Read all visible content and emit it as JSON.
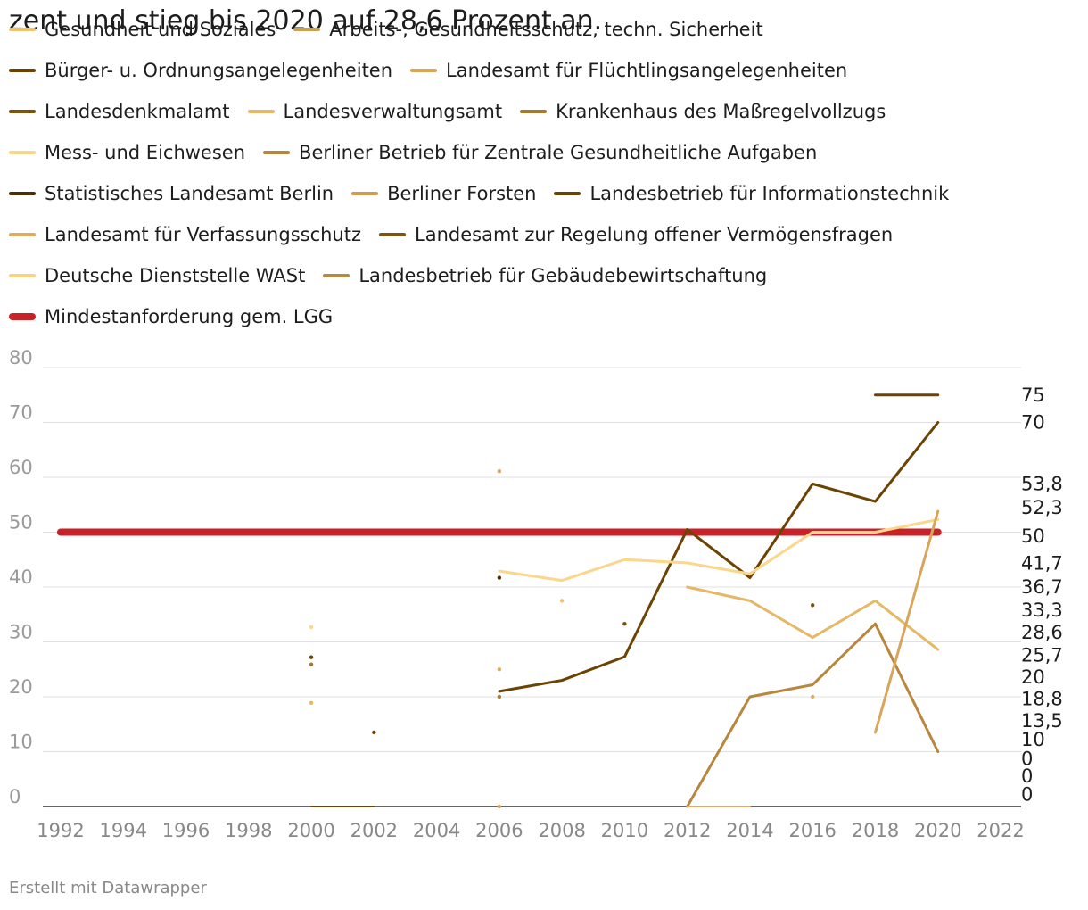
{
  "title": "zent und stieg bis 2020 auf 28,6 Prozent an.",
  "footer": "Erstellt mit Datawrapper",
  "legend": [
    [
      {
        "label": "Gesundheit und Soziales",
        "color": "#f2c26b"
      },
      {
        "label": "Arbeits-, Gesundheitsschutz, techn. Sicherheit",
        "color": "#c8a050"
      }
    ],
    [
      {
        "label": "Bürger- u. Ordnungsangelegenheiten",
        "color": "#6b4403"
      },
      {
        "label": "Landesamt für Flüchtlingsangelegenheiten",
        "color": "#d9a55a"
      }
    ],
    [
      {
        "label": "Landesdenkmalamt",
        "color": "#7a5208"
      },
      {
        "label": "Landesverwaltungsamt",
        "color": "#e6b866"
      },
      {
        "label": "Krankenhaus des Maßregelvollzugs",
        "color": "#a87a2e"
      }
    ],
    [
      {
        "label": "Mess- und Eichwesen",
        "color": "#fcd68a"
      },
      {
        "label": "Berliner Betrieb für Zentrale Gesundheitliche Aufgaben",
        "color": "#b8863d"
      }
    ],
    [
      {
        "label": "Statistisches Landesamt Berlin",
        "color": "#4a2f05"
      },
      {
        "label": "Berliner Forsten",
        "color": "#d19a4f"
      },
      {
        "label": "Landesbetrieb für Informationstechnik",
        "color": "#6b4403"
      }
    ],
    [
      {
        "label": "Landesamt für Verfassungsschutz",
        "color": "#deac5c"
      },
      {
        "label": "Landesamt zur Regelung offener Vermögensfragen",
        "color": "#7d5410"
      }
    ],
    [
      {
        "label": "Deutsche Dienststelle WASt",
        "color": "#f8d382"
      },
      {
        "label": "Landesbetrieb für Gebäudebewirtschaftung",
        "color": "#b58a44"
      }
    ],
    [
      {
        "label": "Mindestanforderung gem. LGG",
        "color": "#c92127",
        "thick": true
      }
    ]
  ],
  "chart_data": {
    "type": "line",
    "xlim": [
      1992,
      2022
    ],
    "ylim": [
      0,
      80
    ],
    "x_ticks": [
      "1992",
      "1994",
      "1996",
      "1998",
      "2000",
      "2002",
      "2004",
      "2006",
      "2008",
      "2010",
      "2012",
      "2014",
      "2016",
      "2018",
      "2020",
      "2022"
    ],
    "y_ticks": [
      "0",
      "10",
      "20",
      "30",
      "40",
      "50",
      "60",
      "70",
      "80"
    ],
    "series": [
      {
        "name": "Mindestanforderung gem. LGG",
        "color": "#c92127",
        "width": 8,
        "points": [
          [
            1992,
            50
          ],
          [
            2020,
            50
          ]
        ]
      },
      {
        "name": "Bürger- u. Ordnungsangelegenheiten",
        "color": "#6b4403",
        "width": 3,
        "points": [
          [
            2006,
            21
          ],
          [
            2008,
            23
          ],
          [
            2010,
            27.3
          ],
          [
            2012,
            50.5
          ],
          [
            2014,
            41.7
          ],
          [
            2016,
            58.8
          ],
          [
            2018,
            55.6
          ],
          [
            2020,
            70
          ]
        ]
      },
      {
        "name": "Mess- und Eichwesen",
        "color": "#fcd68a",
        "width": 3,
        "points": [
          [
            2006,
            42.9
          ],
          [
            2008,
            41.2
          ],
          [
            2010,
            45
          ],
          [
            2012,
            44.4
          ],
          [
            2014,
            42.4
          ],
          [
            2016,
            50
          ],
          [
            2018,
            50
          ],
          [
            2020,
            52.3
          ]
        ]
      },
      {
        "name": "Gesundheit und Soziales",
        "color": "#e6b866",
        "width": 3,
        "points": [
          [
            2012,
            40
          ],
          [
            2014,
            37.5
          ],
          [
            2016,
            30.8
          ],
          [
            2018,
            37.5
          ],
          [
            2020,
            28.6
          ]
        ]
      },
      {
        "name": "Krankenhaus des Maßregelvollzugs",
        "color": "#b8863d",
        "width": 3,
        "points": [
          [
            2012,
            0
          ],
          [
            2014,
            20
          ],
          [
            2016,
            22.2
          ],
          [
            2018,
            33.3
          ],
          [
            2020,
            10
          ]
        ]
      },
      {
        "name": "Landesamt für Flüchtlingsangelegenheiten",
        "color": "#d9a55a",
        "width": 3,
        "points": [
          [
            2018,
            13.5
          ],
          [
            2020,
            53.8
          ]
        ]
      },
      {
        "name": "Landesbetrieb für Informationstechnik",
        "color": "#6b4403",
        "width": 3,
        "points": [
          [
            2018,
            75
          ],
          [
            2020,
            75
          ]
        ]
      },
      {
        "name": "Statistisches Landesamt Berlin",
        "color": "#6b4403",
        "width": 2,
        "points": [
          [
            2000,
            0
          ],
          [
            2002,
            0
          ]
        ]
      },
      {
        "name": "Landesamt für Verfassungsschutz",
        "color": "#deac5c",
        "width": 2,
        "points": [
          [
            2012,
            0
          ],
          [
            2014,
            0
          ]
        ]
      }
    ],
    "dots": [
      {
        "x": 2000,
        "y": 32.7,
        "color": "#fcd68a"
      },
      {
        "x": 2000,
        "y": 27.2,
        "color": "#6b4403"
      },
      {
        "x": 2000,
        "y": 25.9,
        "color": "#a87a2e"
      },
      {
        "x": 2000,
        "y": 18.9,
        "color": "#e6b866"
      },
      {
        "x": 2002,
        "y": 13.5,
        "color": "#6b4403"
      },
      {
        "x": 2006,
        "y": 61.1,
        "color": "#d9a55a"
      },
      {
        "x": 2006,
        "y": 41.7,
        "color": "#4a2f05"
      },
      {
        "x": 2006,
        "y": 25,
        "color": "#deac5c"
      },
      {
        "x": 2006,
        "y": 20,
        "color": "#a87a2e"
      },
      {
        "x": 2006,
        "y": 0,
        "color": "#d9a55a"
      },
      {
        "x": 2008,
        "y": 37.5,
        "color": "#f2c26b"
      },
      {
        "x": 2010,
        "y": 33.3,
        "color": "#7a5208"
      },
      {
        "x": 2016,
        "y": 36.7,
        "color": "#7d5410"
      },
      {
        "x": 2016,
        "y": 20,
        "color": "#deac5c"
      }
    ],
    "end_labels": [
      {
        "text": "75",
        "y": 75
      },
      {
        "text": "70",
        "y": 70
      },
      {
        "text": "53,8",
        "y": 58.8
      },
      {
        "text": "52,3",
        "y": 54.5
      },
      {
        "text": "50",
        "y": 49.3
      },
      {
        "text": "41,7",
        "y": 44.3
      },
      {
        "text": "36,7",
        "y": 40
      },
      {
        "text": "33,3",
        "y": 35.8
      },
      {
        "text": "28,6",
        "y": 31.7
      },
      {
        "text": "25,7",
        "y": 27.6
      },
      {
        "text": "20",
        "y": 23.6
      },
      {
        "text": "18,8",
        "y": 19.6
      },
      {
        "text": "13,5",
        "y": 15.6
      },
      {
        "text": "10",
        "y": 12.2
      },
      {
        "text": "0",
        "y": 8.7
      },
      {
        "text": "0",
        "y": 5.5
      },
      {
        "text": "0",
        "y": 2.2
      }
    ]
  }
}
